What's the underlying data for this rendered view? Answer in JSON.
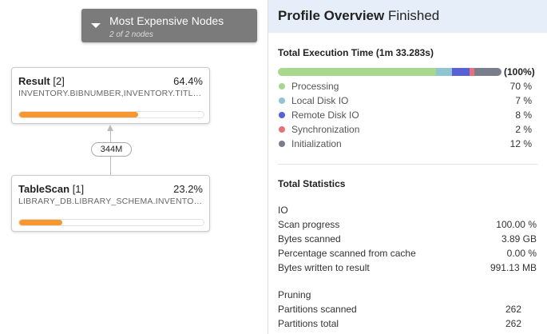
{
  "graph": {
    "most_expensive": {
      "title": "Most Expensive Nodes",
      "subtitle": "2 of 2 nodes"
    },
    "nodes": [
      {
        "name": "Result",
        "id": "[2]",
        "percent": "64.4%",
        "detail": "INVENTORY.BIBNUMBER,INVENTORY.TITLE...",
        "progress": 64.4
      },
      {
        "name": "TableScan",
        "id": "[1]",
        "percent": "23.2%",
        "detail": "LIBRARY_DB.LIBRARY_SCHEMA.INVENTORY",
        "progress": 23.2
      }
    ],
    "edge_label": "344M"
  },
  "overview": {
    "title": "Profile Overview",
    "status": "Finished",
    "exec_title": "Total Execution Time (1m 33.283s)",
    "exec_total": "(100%)",
    "breakdown": [
      {
        "label": "Processing",
        "value": "70 %",
        "pct": 70,
        "color": "#a8d88e"
      },
      {
        "label": "Local Disk IO",
        "value": "7 %",
        "pct": 7,
        "color": "#8fc4d2"
      },
      {
        "label": "Remote Disk IO",
        "value": "8 %",
        "pct": 8,
        "color": "#5860d8"
      },
      {
        "label": "Synchronization",
        "value": "2 %",
        "pct": 2,
        "color": "#e8707a"
      },
      {
        "label": "Initialization",
        "value": "12 %",
        "pct": 12,
        "color": "#7a7e8c"
      }
    ],
    "stats_title": "Total Statistics",
    "io": {
      "title": "IO",
      "rows": [
        {
          "label": "Scan progress",
          "value": "100.00 %"
        },
        {
          "label": "Bytes scanned",
          "value": "3.89 GB"
        },
        {
          "label": "Percentage scanned from cache",
          "value": "0.00 %"
        },
        {
          "label": "Bytes written to result",
          "value": "991.13 MB"
        }
      ]
    },
    "pruning": {
      "title": "Pruning",
      "rows": [
        {
          "label": "Partitions scanned",
          "value": "262"
        },
        {
          "label": "Partitions total",
          "value": "262"
        }
      ]
    }
  }
}
